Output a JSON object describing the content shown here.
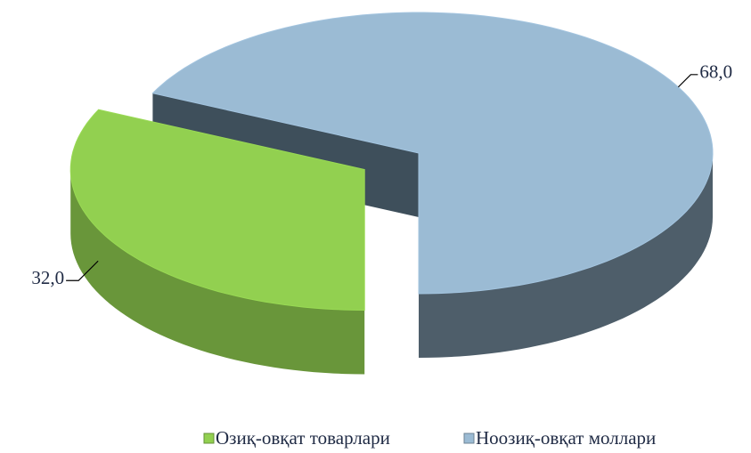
{
  "chart_data": {
    "type": "pie",
    "categories": [
      "Озиқ-овқат товарлари",
      "Ноозиқ-овқат моллари"
    ],
    "values": [
      32.0,
      68.0
    ],
    "value_labels": [
      "32,0",
      "68,0"
    ],
    "colors": [
      "#92d050",
      "#9bbbd4"
    ],
    "legend": "bottom"
  }
}
